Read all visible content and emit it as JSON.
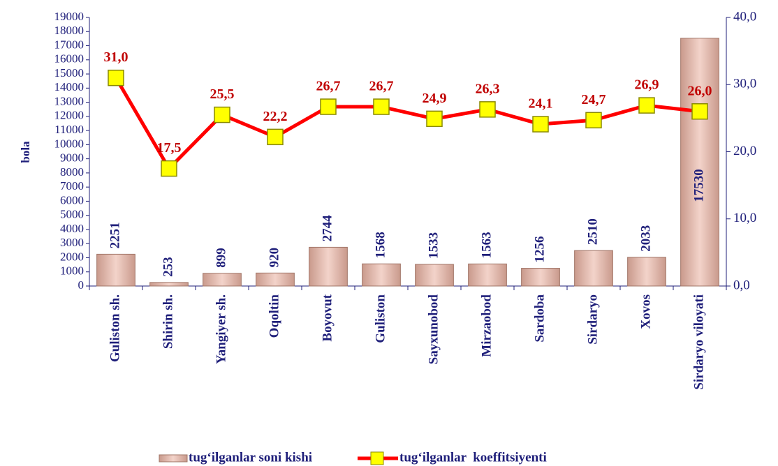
{
  "chart_data": {
    "type": "bar",
    "y_label": "bola",
    "categories": [
      "Guliston sh.",
      "Shirin sh.",
      "Yangiyer sh.",
      "Oqoltin",
      "Boyovut",
      "Guliston",
      "Sayxunobod",
      "Mirzaobod",
      "Sardoba",
      "Sirdaryo",
      "Xovos",
      "Sirdaryo viloyati"
    ],
    "series": [
      {
        "name": "tug‘ilganlar soni kishi",
        "type": "bar",
        "color": "#e6b3a6",
        "values": [
          2251,
          253,
          899,
          920,
          2744,
          1568,
          1533,
          1563,
          1256,
          2510,
          2033,
          17530
        ]
      },
      {
        "name": "tug‘ilganlar  koeffitsiyenti",
        "type": "line",
        "axis": "y2",
        "color": "#ff0000",
        "marker_color": "#ffff00",
        "values": [
          31.0,
          17.5,
          25.5,
          22.2,
          26.7,
          26.7,
          24.9,
          26.3,
          24.1,
          24.7,
          26.9,
          26.0
        ],
        "value_labels": [
          "31,0",
          "17,5",
          "25,5",
          "22,2",
          "26,7",
          "26,7",
          "24,9",
          "26,3",
          "24,1",
          "24,7",
          "26,9",
          "26,0"
        ]
      }
    ],
    "ylim": [
      0,
      19000
    ],
    "yticks": [
      0,
      1000,
      2000,
      3000,
      4000,
      5000,
      6000,
      7000,
      8000,
      9000,
      10000,
      11000,
      12000,
      13000,
      14000,
      15000,
      16000,
      17000,
      18000,
      19000
    ],
    "y2lim": [
      0,
      40
    ],
    "y2ticks": [
      {
        "value": 0,
        "label": "0,0"
      },
      {
        "value": 10,
        "label": "10,0"
      },
      {
        "value": 20,
        "label": "20,0"
      },
      {
        "value": 30,
        "label": "30,0"
      },
      {
        "value": 40,
        "label": "40,0"
      }
    ],
    "legend": "bottom"
  }
}
